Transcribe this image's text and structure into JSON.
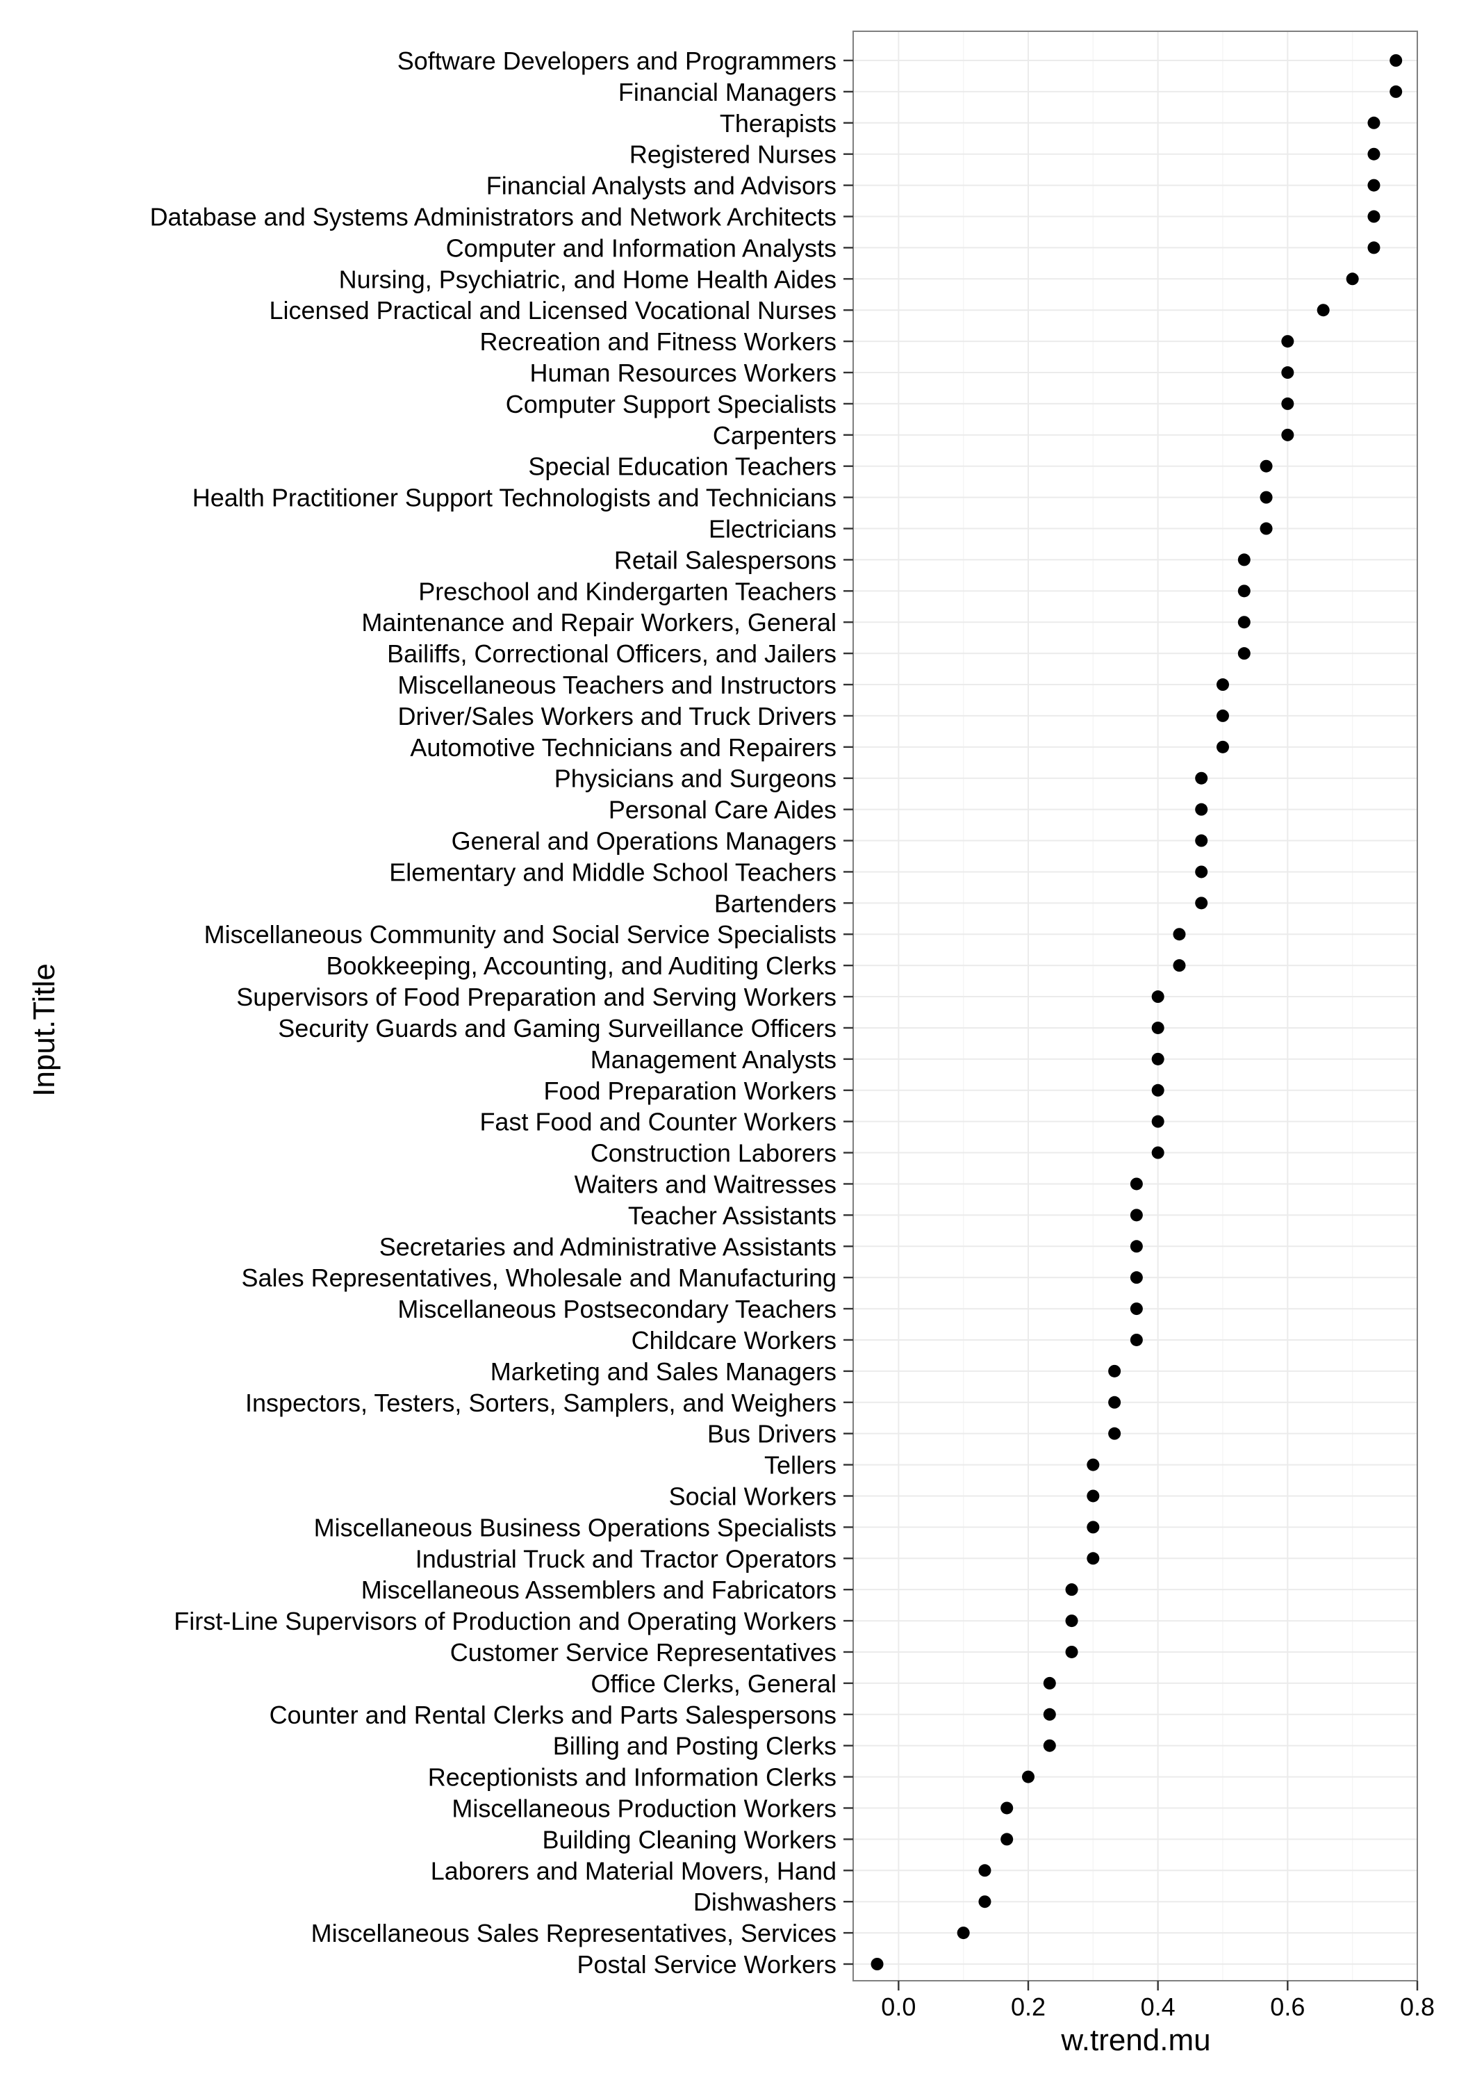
{
  "chart_data": {
    "type": "scatter",
    "xlabel": "w.trend.mu",
    "ylabel": "Input.Title",
    "xlim": [
      -0.07,
      0.8
    ],
    "xticks": [
      0.0,
      0.2,
      0.4,
      0.6,
      0.8
    ],
    "xtick_labels": [
      "0.0",
      "0.2",
      "0.4",
      "0.6",
      "0.8"
    ],
    "grid": true,
    "legend": "none",
    "point_color": "#000000",
    "categories": [
      "Software Developers and Programmers",
      "Financial Managers",
      "Therapists",
      "Registered Nurses",
      "Financial Analysts and Advisors",
      "Database and Systems Administrators and Network Architects",
      "Computer and Information Analysts",
      "Nursing, Psychiatric, and Home Health Aides",
      "Licensed Practical and Licensed Vocational Nurses",
      "Recreation and Fitness Workers",
      "Human Resources Workers",
      "Computer Support Specialists",
      "Carpenters",
      "Special Education Teachers",
      "Health Practitioner Support Technologists and Technicians",
      "Electricians",
      "Retail Salespersons",
      "Preschool and Kindergarten Teachers",
      "Maintenance and Repair Workers, General",
      "Bailiffs, Correctional Officers, and Jailers",
      "Miscellaneous Teachers and Instructors",
      "Driver/Sales Workers and Truck Drivers",
      "Automotive Technicians and Repairers",
      "Physicians and Surgeons",
      "Personal Care Aides",
      "General and Operations Managers",
      "Elementary and Middle School Teachers",
      "Bartenders",
      "Miscellaneous Community and Social Service Specialists",
      "Bookkeeping, Accounting, and Auditing Clerks",
      "Supervisors of Food Preparation and Serving Workers",
      "Security Guards and Gaming Surveillance Officers",
      "Management Analysts",
      "Food Preparation Workers",
      "Fast Food and Counter Workers",
      "Construction Laborers",
      "Waiters and Waitresses",
      "Teacher Assistants",
      "Secretaries and Administrative Assistants",
      "Sales Representatives, Wholesale and Manufacturing",
      "Miscellaneous Postsecondary Teachers",
      "Childcare Workers",
      "Marketing and Sales Managers",
      "Inspectors, Testers, Sorters, Samplers, and Weighers",
      "Bus Drivers",
      "Tellers",
      "Social Workers",
      "Miscellaneous Business Operations Specialists",
      "Industrial Truck and Tractor Operators",
      "Miscellaneous Assemblers and Fabricators",
      "First-Line Supervisors of Production and Operating Workers",
      "Customer Service Representatives",
      "Office Clerks, General",
      "Counter and Rental Clerks and Parts Salespersons",
      "Billing and Posting Clerks",
      "Receptionists and Information Clerks",
      "Miscellaneous Production Workers",
      "Building Cleaning Workers",
      "Laborers and Material Movers, Hand",
      "Dishwashers",
      "Miscellaneous Sales Representatives, Services",
      "Postal Service Workers"
    ],
    "values": [
      0.767,
      0.767,
      0.733,
      0.733,
      0.733,
      0.733,
      0.733,
      0.7,
      0.655,
      0.6,
      0.6,
      0.6,
      0.6,
      0.567,
      0.567,
      0.567,
      0.533,
      0.533,
      0.533,
      0.533,
      0.5,
      0.5,
      0.5,
      0.467,
      0.467,
      0.467,
      0.467,
      0.467,
      0.433,
      0.433,
      0.4,
      0.4,
      0.4,
      0.4,
      0.4,
      0.4,
      0.367,
      0.367,
      0.367,
      0.367,
      0.367,
      0.367,
      0.333,
      0.333,
      0.333,
      0.3,
      0.3,
      0.3,
      0.3,
      0.267,
      0.267,
      0.267,
      0.233,
      0.233,
      0.233,
      0.2,
      0.167,
      0.167,
      0.133,
      0.133,
      0.1,
      -0.033
    ]
  }
}
